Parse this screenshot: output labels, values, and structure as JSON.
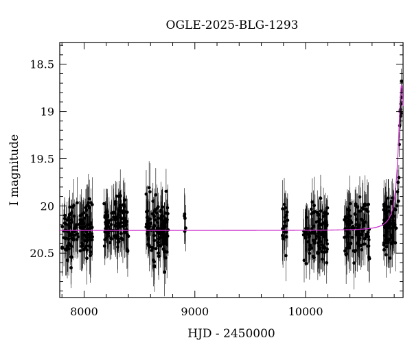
{
  "chart_data": {
    "type": "scatter",
    "title": "OGLE-2025-BLG-1293",
    "xlabel": "HJD - 2450000",
    "ylabel": "I magnitude",
    "xlim": [
      7780,
      10880
    ],
    "ylim": [
      20.97,
      18.27
    ],
    "y_inverted": true,
    "x_ticks": [
      8000,
      9000,
      10000
    ],
    "y_ticks": [
      18.5,
      19,
      19.5,
      20,
      20.5
    ],
    "x_tick_labels": [
      "8000",
      "9000",
      "10000"
    ],
    "y_tick_labels": [
      "18.5",
      "19",
      "19.5",
      "20",
      "20.5"
    ],
    "grid": false,
    "legend": "none",
    "colors": {
      "points": "#000000",
      "model": "#cc33cc"
    },
    "model": {
      "baseline": 20.26,
      "peak_time": 10866,
      "peak_mag": 18.72,
      "rise_width": 34
    },
    "series": [
      {
        "kind": "points_with_errorbars",
        "seasons": [
          {
            "start": 7800,
            "end": 8080,
            "center": 20.26,
            "spread": 0.35,
            "count": 120
          },
          {
            "start": 8180,
            "end": 8400,
            "center": 20.2,
            "spread": 0.3,
            "count": 110
          },
          {
            "start": 8560,
            "end": 8760,
            "center": 20.26,
            "spread": 0.4,
            "count": 115
          },
          {
            "start": 8905,
            "end": 8920,
            "center": 20.2,
            "spread": 0.2,
            "count": 5
          },
          {
            "start": 9790,
            "end": 9840,
            "center": 20.2,
            "spread": 0.3,
            "count": 18
          },
          {
            "start": 9980,
            "end": 10200,
            "center": 20.26,
            "spread": 0.35,
            "count": 105
          },
          {
            "start": 10350,
            "end": 10580,
            "center": 20.26,
            "spread": 0.35,
            "count": 105
          },
          {
            "start": 10700,
            "end": 10820,
            "center": 20.22,
            "spread": 0.3,
            "count": 70
          }
        ],
        "rise_points": [
          {
            "x": 10825,
            "y": 20.0
          },
          {
            "x": 10830,
            "y": 19.85
          },
          {
            "x": 10835,
            "y": 19.75
          },
          {
            "x": 10838,
            "y": 19.95
          },
          {
            "x": 10842,
            "y": 19.7
          },
          {
            "x": 10846,
            "y": 19.35
          },
          {
            "x": 10850,
            "y": 19.15
          },
          {
            "x": 10853,
            "y": 19.0
          },
          {
            "x": 10856,
            "y": 18.98
          },
          {
            "x": 10858,
            "y": 19.05
          },
          {
            "x": 10860,
            "y": 18.92
          },
          {
            "x": 10862,
            "y": 19.02
          },
          {
            "x": 10864,
            "y": 18.85
          },
          {
            "x": 10866,
            "y": 18.68
          }
        ],
        "errorbar": 0.22
      }
    ]
  }
}
